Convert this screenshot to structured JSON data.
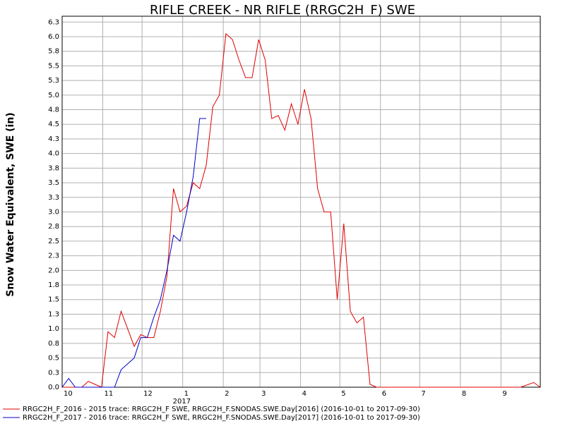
{
  "chart_data": {
    "type": "line",
    "title": "RIFLE CREEK - NR RIFLE (RRGC2H_F) SWE",
    "y_label": "Snow Water Equivalent, SWE (in)",
    "year_label": "2017",
    "xlim": [
      0,
      365
    ],
    "ylim": [
      0,
      6.35
    ],
    "grid": true,
    "xticks": [
      {
        "value": 0,
        "label": "10"
      },
      {
        "value": 31,
        "label": "11"
      },
      {
        "value": 61,
        "label": "12"
      },
      {
        "value": 92,
        "label": "1"
      },
      {
        "value": 123,
        "label": "2"
      },
      {
        "value": 151,
        "label": "3"
      },
      {
        "value": 182,
        "label": "4"
      },
      {
        "value": 212,
        "label": "5"
      },
      {
        "value": 243,
        "label": "6"
      },
      {
        "value": 273,
        "label": "7"
      },
      {
        "value": 304,
        "label": "8"
      },
      {
        "value": 335,
        "label": "9"
      }
    ],
    "yticks": [
      {
        "value": 0,
        "label": "0.0"
      },
      {
        "value": 0.25,
        "label": "0.3"
      },
      {
        "value": 0.5,
        "label": "0.5"
      },
      {
        "value": 0.75,
        "label": "0.8"
      },
      {
        "value": 1,
        "label": "1.0"
      },
      {
        "value": 1.25,
        "label": "1.3"
      },
      {
        "value": 1.5,
        "label": "1.5"
      },
      {
        "value": 1.75,
        "label": "1.8"
      },
      {
        "value": 2,
        "label": "2.0"
      },
      {
        "value": 2.25,
        "label": "2.3"
      },
      {
        "value": 2.5,
        "label": "2.5"
      },
      {
        "value": 2.75,
        "label": "2.8"
      },
      {
        "value": 3,
        "label": "3.0"
      },
      {
        "value": 3.25,
        "label": "3.3"
      },
      {
        "value": 3.5,
        "label": "3.5"
      },
      {
        "value": 3.75,
        "label": "3.8"
      },
      {
        "value": 4,
        "label": "4.0"
      },
      {
        "value": 4.25,
        "label": "4.3"
      },
      {
        "value": 4.5,
        "label": "4.5"
      },
      {
        "value": 4.75,
        "label": "4.8"
      },
      {
        "value": 5,
        "label": "5.0"
      },
      {
        "value": 5.25,
        "label": "5.3"
      },
      {
        "value": 5.5,
        "label": "5.5"
      },
      {
        "value": 5.75,
        "label": "5.8"
      },
      {
        "value": 6,
        "label": "6.0"
      },
      {
        "value": 6.25,
        "label": "6.3"
      }
    ],
    "x": [
      0,
      5,
      10,
      15,
      20,
      25,
      30,
      35,
      40,
      45,
      50,
      55,
      60,
      65,
      70,
      75,
      80,
      85,
      90,
      95,
      100,
      105,
      110,
      115,
      120,
      125,
      130,
      135,
      140,
      145,
      150,
      155,
      160,
      165,
      170,
      175,
      180,
      185,
      190,
      195,
      200,
      205,
      210,
      215,
      220,
      225,
      230,
      235,
      240,
      250,
      260,
      270,
      280,
      290,
      300,
      310,
      320,
      330,
      340,
      350,
      360,
      365
    ],
    "series": [
      {
        "name": "RRGC2H_F_2016 - 2015 trace: RRGC2H_F SWE, RRGC2H_F.SNODAS.SWE.Day[2016] (2016-10-01 to 2017-09-30)",
        "color": "#e00000",
        "values": [
          0,
          0,
          0,
          0,
          0.1,
          0.05,
          0,
          0.95,
          0.85,
          1.3,
          1.0,
          0.7,
          0.9,
          0.85,
          0.85,
          1.3,
          1.9,
          3.4,
          3.0,
          3.1,
          3.5,
          3.4,
          3.8,
          4.8,
          5.0,
          6.05,
          5.95,
          5.6,
          5.3,
          5.3,
          5.95,
          5.6,
          4.6,
          4.65,
          4.4,
          4.85,
          4.5,
          5.1,
          4.6,
          3.4,
          3.0,
          3.0,
          1.5,
          2.8,
          1.3,
          1.1,
          1.2,
          0.05,
          0,
          0,
          0,
          0,
          0,
          0,
          0,
          0,
          0,
          0,
          0,
          0,
          0.08,
          0
        ]
      },
      {
        "name": "RRGC2H_F_2017 - 2016 trace: RRGC2H_F SWE, RRGC2H_F.SNODAS.SWE.Day[2017] (2016-10-01 to 2017-09-30)",
        "color": "#0000cc",
        "values": [
          0,
          0.15,
          0,
          0,
          0,
          0,
          0,
          0,
          0,
          0.3,
          0.4,
          0.5,
          0.85,
          0.85,
          1.2,
          1.5,
          2.0,
          2.6,
          2.5,
          3.0,
          3.6,
          4.6,
          4.6,
          null,
          null,
          null,
          null,
          null,
          null,
          null,
          null,
          null,
          null,
          null,
          null,
          null,
          null,
          null,
          null,
          null,
          null,
          null,
          null,
          null,
          null,
          null,
          null,
          null,
          null,
          null,
          null,
          null,
          null,
          null,
          null,
          null,
          null,
          null,
          null,
          null,
          null,
          null
        ]
      }
    ]
  }
}
